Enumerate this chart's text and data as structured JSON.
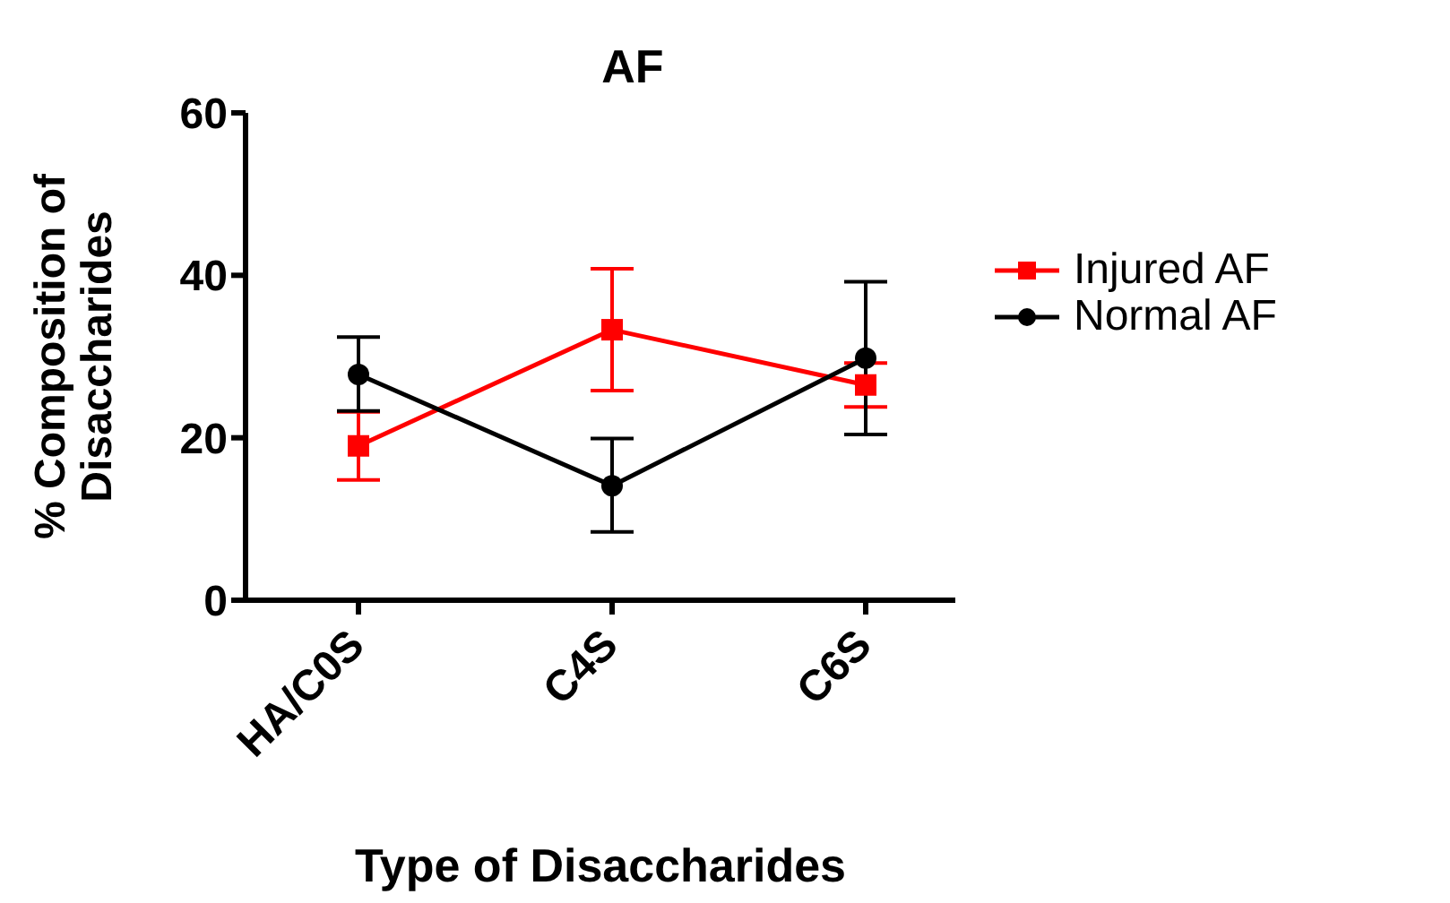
{
  "chart_data": {
    "type": "line",
    "title": "AF",
    "xlabel": "Type of Disaccharides",
    "ylabel": "% Composition of Disaccharides",
    "categories": [
      "HA/C0S",
      "C4S",
      "C6S"
    ],
    "series": [
      {
        "name": "Injured AF",
        "color": "#ff0000",
        "marker": "square",
        "values": [
          19,
          33.3,
          26.5
        ],
        "errors": [
          [
            14.8,
            23.2
          ],
          [
            25.8,
            40.8
          ],
          [
            23.8,
            29.2
          ]
        ]
      },
      {
        "name": "Normal AF",
        "color": "#000000",
        "marker": "circle",
        "values": [
          27.8,
          14.1,
          29.8
        ],
        "errors": [
          [
            23.3,
            32.4
          ],
          [
            8.4,
            19.9
          ],
          [
            20.4,
            39.2
          ]
        ]
      }
    ],
    "ylim": [
      0,
      60
    ],
    "yticks": [
      0,
      20,
      40,
      60
    ],
    "grid": false,
    "legend": "right"
  }
}
